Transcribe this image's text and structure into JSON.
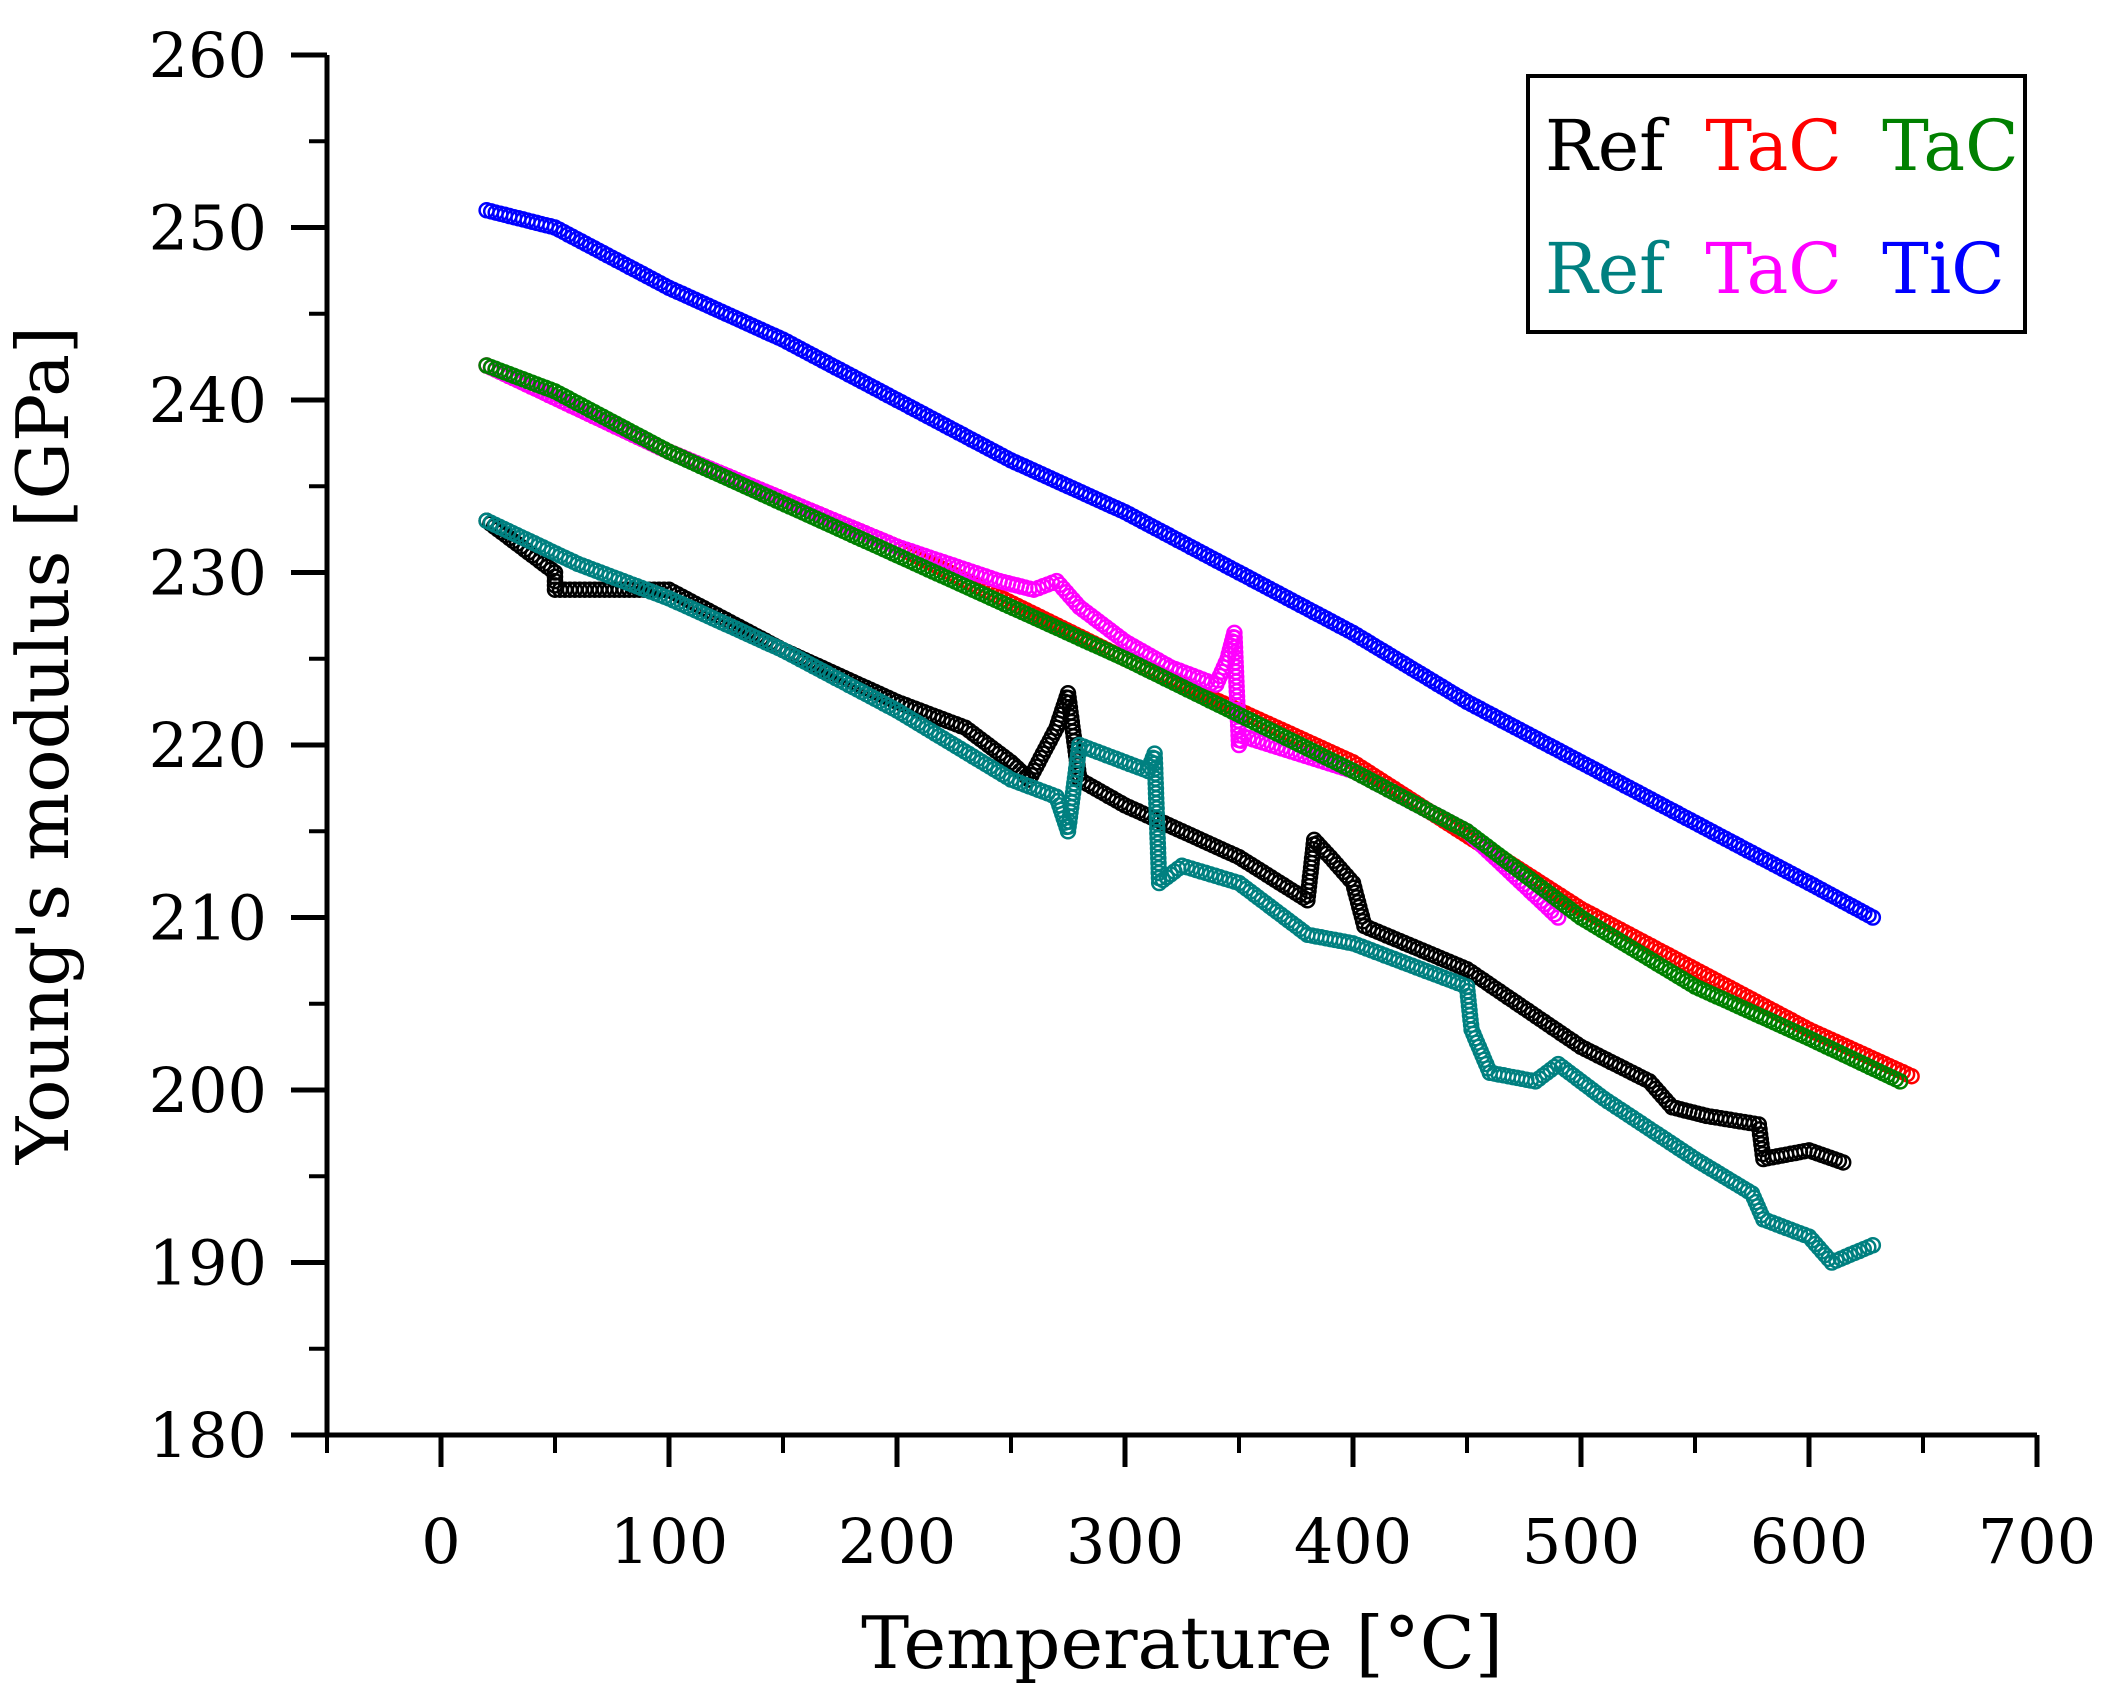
{
  "chart_data": {
    "type": "scatter",
    "title": "",
    "xlabel": "Temperature [°C]",
    "ylabel": "Young's modulus [GPa]",
    "xlim": [
      -50,
      700
    ],
    "ylim": [
      180,
      260
    ],
    "xticks": [
      0,
      100,
      200,
      300,
      400,
      500,
      600,
      700
    ],
    "yticks": [
      180,
      190,
      200,
      210,
      220,
      230,
      240,
      250,
      260
    ],
    "grid": false,
    "legend_position": "top-right",
    "legend_rows": [
      [
        {
          "text": "Ref",
          "color": "#000000"
        },
        {
          "text": "TaC",
          "color": "#ff0000"
        },
        {
          "text": "TaC",
          "color": "#008000"
        }
      ],
      [
        {
          "text": "Ref",
          "color": "#008080"
        },
        {
          "text": "TaC",
          "color": "#ff00ff"
        },
        {
          "text": "TiC",
          "color": "#0000ff"
        }
      ]
    ],
    "series": [
      {
        "name": "TiC",
        "color": "#0000ff",
        "points": [
          [
            20,
            251
          ],
          [
            50,
            250
          ],
          [
            100,
            246.5
          ],
          [
            150,
            243.5
          ],
          [
            200,
            240
          ],
          [
            250,
            236.5
          ],
          [
            300,
            233.5
          ],
          [
            350,
            230
          ],
          [
            400,
            226.5
          ],
          [
            450,
            222.5
          ],
          [
            500,
            219
          ],
          [
            550,
            215.5
          ],
          [
            600,
            212
          ],
          [
            628,
            210
          ]
        ]
      },
      {
        "name": "TaC (red)",
        "color": "#ff0000",
        "points": [
          [
            20,
            242
          ],
          [
            100,
            237
          ],
          [
            200,
            231.5
          ],
          [
            300,
            225
          ],
          [
            400,
            219
          ],
          [
            500,
            210.5
          ],
          [
            600,
            203.5
          ],
          [
            645,
            200.8
          ]
        ]
      },
      {
        "name": "TaC (magenta)",
        "color": "#ff00ff",
        "points": [
          [
            20,
            242
          ],
          [
            100,
            237
          ],
          [
            200,
            231.5
          ],
          [
            245,
            229.5
          ],
          [
            260,
            229
          ],
          [
            270,
            229.5
          ],
          [
            280,
            228
          ],
          [
            300,
            226
          ],
          [
            320,
            224.5
          ],
          [
            340,
            223.5
          ],
          [
            345,
            225
          ],
          [
            348,
            226.5
          ],
          [
            350,
            220
          ],
          [
            352,
            220.5
          ],
          [
            400,
            218.5
          ],
          [
            450,
            215
          ],
          [
            490,
            210
          ]
        ]
      },
      {
        "name": "TaC (green)",
        "color": "#008000",
        "points": [
          [
            20,
            242
          ],
          [
            50,
            240.5
          ],
          [
            100,
            237
          ],
          [
            200,
            231
          ],
          [
            300,
            225
          ],
          [
            400,
            218.5
          ],
          [
            450,
            215
          ],
          [
            500,
            210
          ],
          [
            550,
            206
          ],
          [
            600,
            203
          ],
          [
            640,
            200.5
          ]
        ]
      },
      {
        "name": "Ref (black)",
        "color": "#000000",
        "points": [
          [
            20,
            233
          ],
          [
            50,
            230
          ],
          [
            50,
            229
          ],
          [
            100,
            229
          ],
          [
            150,
            225.5
          ],
          [
            200,
            222.5
          ],
          [
            230,
            221
          ],
          [
            250,
            219
          ],
          [
            258,
            218
          ],
          [
            270,
            221
          ],
          [
            275,
            223
          ],
          [
            280,
            218
          ],
          [
            300,
            216.5
          ],
          [
            350,
            213.5
          ],
          [
            380,
            211
          ],
          [
            383,
            214.5
          ],
          [
            390,
            213.5
          ],
          [
            400,
            212
          ],
          [
            405,
            209.5
          ],
          [
            450,
            207
          ],
          [
            500,
            202.5
          ],
          [
            530,
            200.5
          ],
          [
            540,
            199
          ],
          [
            555,
            198.5
          ],
          [
            578,
            198
          ],
          [
            580,
            196
          ],
          [
            600,
            196.5
          ],
          [
            615,
            195.8
          ]
        ]
      },
      {
        "name": "Ref (teal)",
        "color": "#008080",
        "points": [
          [
            20,
            233
          ],
          [
            60,
            230.5
          ],
          [
            100,
            228.5
          ],
          [
            150,
            225.5
          ],
          [
            200,
            222
          ],
          [
            250,
            218
          ],
          [
            270,
            217
          ],
          [
            275,
            215
          ],
          [
            280,
            220
          ],
          [
            300,
            219
          ],
          [
            310,
            218.5
          ],
          [
            313,
            219.5
          ],
          [
            315,
            212
          ],
          [
            325,
            213
          ],
          [
            350,
            212
          ],
          [
            380,
            209
          ],
          [
            400,
            208.5
          ],
          [
            450,
            206
          ],
          [
            452,
            203.5
          ],
          [
            460,
            201
          ],
          [
            480,
            200.5
          ],
          [
            490,
            201.5
          ],
          [
            510,
            199.5
          ],
          [
            550,
            196
          ],
          [
            575,
            194
          ],
          [
            580,
            192.5
          ],
          [
            600,
            191.5
          ],
          [
            610,
            190
          ],
          [
            628,
            191
          ]
        ]
      }
    ]
  }
}
